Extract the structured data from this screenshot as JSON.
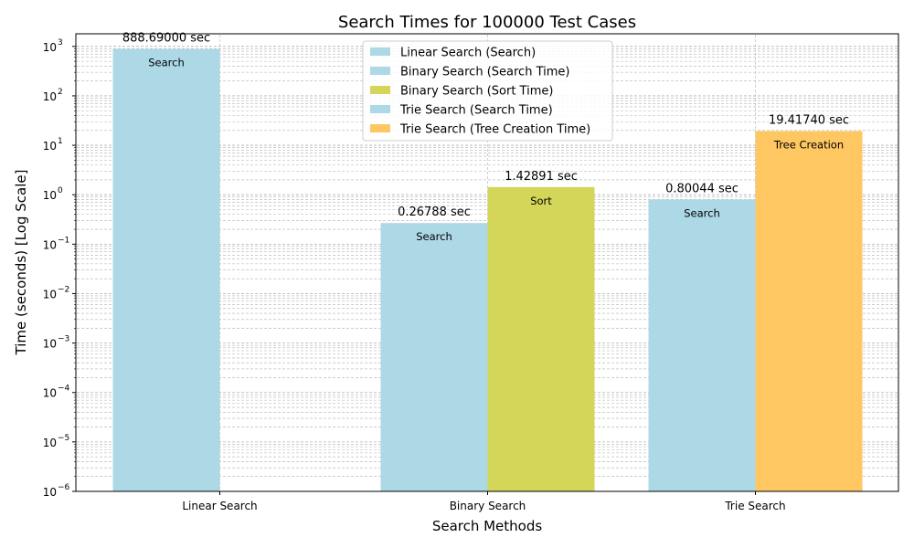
{
  "chart_data": {
    "type": "bar",
    "title": "Search Times for 100000 Test Cases",
    "xlabel": "Search Methods",
    "ylabel": "Time (seconds) [Log Scale]",
    "y_scale": "log",
    "ylim": [
      1e-06,
      1800
    ],
    "grid": true,
    "legend_position": "top-center",
    "categories": [
      "Linear Search",
      "Binary Search",
      "Trie Search"
    ],
    "bars": [
      {
        "category": "Linear Search",
        "slot": "left",
        "series": "Linear Search (Search)",
        "value": 888.69,
        "value_label": "888.69000 sec",
        "inner_label": "Search",
        "color": "#add8e6"
      },
      {
        "category": "Binary Search",
        "slot": "left",
        "series": "Binary Search (Search Time)",
        "value": 0.26788,
        "value_label": "0.26788 sec",
        "inner_label": "Search",
        "color": "#add8e6"
      },
      {
        "category": "Binary Search",
        "slot": "right",
        "series": "Binary Search (Sort Time)",
        "value": 1.42891,
        "value_label": "1.42891 sec",
        "inner_label": "Sort",
        "color": "#d4d65a"
      },
      {
        "category": "Trie Search",
        "slot": "left",
        "series": "Trie Search (Search Time)",
        "value": 0.80044,
        "value_label": "0.80044 sec",
        "inner_label": "Search",
        "color": "#add8e6"
      },
      {
        "category": "Trie Search",
        "slot": "right",
        "series": "Trie Search (Tree Creation Time)",
        "value": 19.4174,
        "value_label": "19.41740 sec",
        "inner_label": "Tree Creation",
        "color": "#fec762"
      }
    ],
    "legend": [
      {
        "label": "Linear Search (Search)",
        "color": "#add8e6"
      },
      {
        "label": "Binary Search (Search Time)",
        "color": "#add8e6"
      },
      {
        "label": "Binary Search (Sort Time)",
        "color": "#d4d65a"
      },
      {
        "label": "Trie Search (Search Time)",
        "color": "#add8e6"
      },
      {
        "label": "Trie Search (Tree Creation Time)",
        "color": "#fec762"
      }
    ],
    "y_ticks": [
      {
        "value": 1e-06,
        "base": "10",
        "exp": "−6"
      },
      {
        "value": 1e-05,
        "base": "10",
        "exp": "−5"
      },
      {
        "value": 0.0001,
        "base": "10",
        "exp": "−4"
      },
      {
        "value": 0.001,
        "base": "10",
        "exp": "−3"
      },
      {
        "value": 0.01,
        "base": "10",
        "exp": "−2"
      },
      {
        "value": 0.1,
        "base": "10",
        "exp": "−1"
      },
      {
        "value": 1,
        "base": "10",
        "exp": "0"
      },
      {
        "value": 10,
        "base": "10",
        "exp": "1"
      },
      {
        "value": 100,
        "base": "10",
        "exp": "2"
      },
      {
        "value": 1000,
        "base": "10",
        "exp": "3"
      }
    ]
  }
}
